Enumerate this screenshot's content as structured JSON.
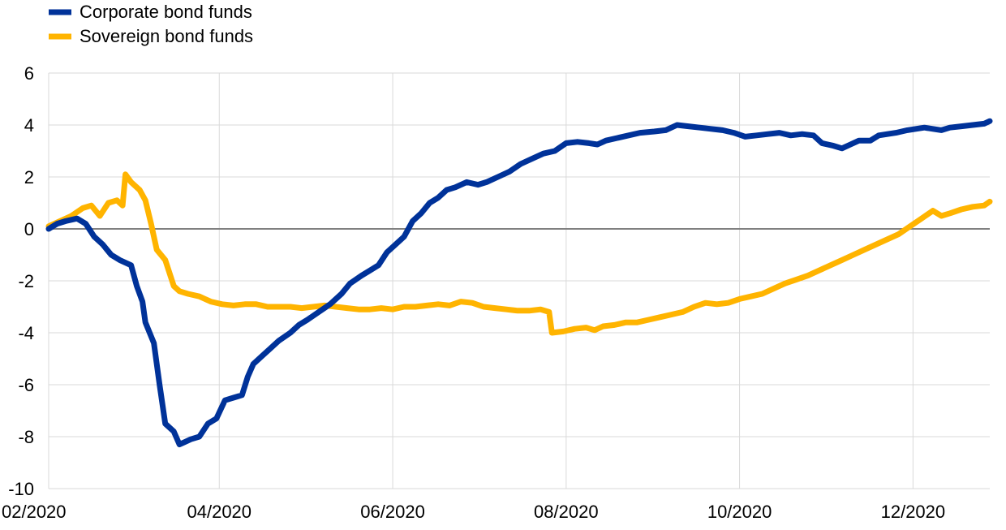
{
  "colors": {
    "corporate": "#003299",
    "sovereign": "#FFB400",
    "grid": "#d9d9d9",
    "zero": "#808080"
  },
  "chart_data": {
    "type": "line",
    "title": "",
    "xlabel": "",
    "ylabel": "",
    "x_range": [
      "2020-02-01",
      "2020-12-28"
    ],
    "ylim": [
      -10,
      6
    ],
    "y_ticks": [
      "6",
      "4",
      "2",
      "0",
      "-2",
      "-4",
      "-6",
      "-8",
      "-10"
    ],
    "x_ticks": [
      {
        "date": "2020-02-01",
        "label": "02/2020"
      },
      {
        "date": "2020-04-01",
        "label": "04/2020"
      },
      {
        "date": "2020-06-01",
        "label": "06/2020"
      },
      {
        "date": "2020-08-01",
        "label": "08/2020"
      },
      {
        "date": "2020-10-01",
        "label": "10/2020"
      },
      {
        "date": "2020-12-01",
        "label": "12/2020"
      }
    ],
    "grid": "vertical and horizontal",
    "legend_position": "top-left",
    "series": [
      {
        "name": "Corporate bond funds",
        "points": [
          [
            "2020-02-01",
            0.0
          ],
          [
            "2020-02-04",
            0.2
          ],
          [
            "2020-02-07",
            0.3
          ],
          [
            "2020-02-11",
            0.4
          ],
          [
            "2020-02-14",
            0.2
          ],
          [
            "2020-02-17",
            -0.3
          ],
          [
            "2020-02-20",
            -0.6
          ],
          [
            "2020-02-23",
            -1.0
          ],
          [
            "2020-02-26",
            -1.2
          ],
          [
            "2020-03-01",
            -1.4
          ],
          [
            "2020-03-03",
            -2.2
          ],
          [
            "2020-03-05",
            -2.8
          ],
          [
            "2020-03-06",
            -3.6
          ],
          [
            "2020-03-09",
            -4.4
          ],
          [
            "2020-03-11",
            -6.0
          ],
          [
            "2020-03-13",
            -7.5
          ],
          [
            "2020-03-16",
            -7.8
          ],
          [
            "2020-03-18",
            -8.3
          ],
          [
            "2020-03-20",
            -8.2
          ],
          [
            "2020-03-22",
            -8.1
          ],
          [
            "2020-03-25",
            -8.0
          ],
          [
            "2020-03-28",
            -7.5
          ],
          [
            "2020-03-31",
            -7.3
          ],
          [
            "2020-04-03",
            -6.6
          ],
          [
            "2020-04-06",
            -6.5
          ],
          [
            "2020-04-09",
            -6.4
          ],
          [
            "2020-04-11",
            -5.7
          ],
          [
            "2020-04-13",
            -5.2
          ],
          [
            "2020-04-16",
            -4.9
          ],
          [
            "2020-04-19",
            -4.6
          ],
          [
            "2020-04-22",
            -4.3
          ],
          [
            "2020-04-26",
            -4.0
          ],
          [
            "2020-04-29",
            -3.7
          ],
          [
            "2020-05-02",
            -3.5
          ],
          [
            "2020-05-06",
            -3.2
          ],
          [
            "2020-05-10",
            -2.9
          ],
          [
            "2020-05-14",
            -2.5
          ],
          [
            "2020-05-17",
            -2.1
          ],
          [
            "2020-05-21",
            -1.8
          ],
          [
            "2020-05-24",
            -1.6
          ],
          [
            "2020-05-27",
            -1.4
          ],
          [
            "2020-05-30",
            -0.9
          ],
          [
            "2020-06-02",
            -0.6
          ],
          [
            "2020-06-05",
            -0.3
          ],
          [
            "2020-06-08",
            0.3
          ],
          [
            "2020-06-11",
            0.6
          ],
          [
            "2020-06-14",
            1.0
          ],
          [
            "2020-06-17",
            1.2
          ],
          [
            "2020-06-20",
            1.5
          ],
          [
            "2020-06-23",
            1.6
          ],
          [
            "2020-06-27",
            1.8
          ],
          [
            "2020-07-01",
            1.7
          ],
          [
            "2020-07-04",
            1.8
          ],
          [
            "2020-07-08",
            2.0
          ],
          [
            "2020-07-12",
            2.2
          ],
          [
            "2020-07-16",
            2.5
          ],
          [
            "2020-07-20",
            2.7
          ],
          [
            "2020-07-24",
            2.9
          ],
          [
            "2020-07-28",
            3.0
          ],
          [
            "2020-08-01",
            3.3
          ],
          [
            "2020-08-05",
            3.35
          ],
          [
            "2020-08-09",
            3.3
          ],
          [
            "2020-08-12",
            3.25
          ],
          [
            "2020-08-15",
            3.4
          ],
          [
            "2020-08-19",
            3.5
          ],
          [
            "2020-08-23",
            3.6
          ],
          [
            "2020-08-27",
            3.7
          ],
          [
            "2020-09-01",
            3.75
          ],
          [
            "2020-09-05",
            3.8
          ],
          [
            "2020-09-09",
            4.0
          ],
          [
            "2020-09-13",
            3.95
          ],
          [
            "2020-09-17",
            3.9
          ],
          [
            "2020-09-21",
            3.85
          ],
          [
            "2020-09-25",
            3.8
          ],
          [
            "2020-09-29",
            3.7
          ],
          [
            "2020-10-03",
            3.55
          ],
          [
            "2020-10-07",
            3.6
          ],
          [
            "2020-10-11",
            3.65
          ],
          [
            "2020-10-15",
            3.7
          ],
          [
            "2020-10-19",
            3.6
          ],
          [
            "2020-10-23",
            3.65
          ],
          [
            "2020-10-27",
            3.6
          ],
          [
            "2020-10-30",
            3.3
          ],
          [
            "2020-11-03",
            3.2
          ],
          [
            "2020-11-06",
            3.1
          ],
          [
            "2020-11-09",
            3.25
          ],
          [
            "2020-11-12",
            3.4
          ],
          [
            "2020-11-16",
            3.4
          ],
          [
            "2020-11-19",
            3.6
          ],
          [
            "2020-11-22",
            3.65
          ],
          [
            "2020-11-25",
            3.7
          ],
          [
            "2020-11-29",
            3.8
          ],
          [
            "2020-12-02",
            3.85
          ],
          [
            "2020-12-05",
            3.9
          ],
          [
            "2020-12-08",
            3.85
          ],
          [
            "2020-12-11",
            3.8
          ],
          [
            "2020-12-14",
            3.9
          ],
          [
            "2020-12-18",
            3.95
          ],
          [
            "2020-12-22",
            4.0
          ],
          [
            "2020-12-26",
            4.05
          ],
          [
            "2020-12-28",
            4.15
          ]
        ]
      },
      {
        "name": "Sovereign bond funds",
        "points": [
          [
            "2020-02-01",
            0.1
          ],
          [
            "2020-02-05",
            0.3
          ],
          [
            "2020-02-09",
            0.5
          ],
          [
            "2020-02-13",
            0.8
          ],
          [
            "2020-02-16",
            0.9
          ],
          [
            "2020-02-19",
            0.5
          ],
          [
            "2020-02-22",
            1.0
          ],
          [
            "2020-02-25",
            1.1
          ],
          [
            "2020-02-27",
            0.9
          ],
          [
            "2020-02-28",
            2.1
          ],
          [
            "2020-03-01",
            1.8
          ],
          [
            "2020-03-04",
            1.5
          ],
          [
            "2020-03-06",
            1.1
          ],
          [
            "2020-03-08",
            0.2
          ],
          [
            "2020-03-10",
            -0.8
          ],
          [
            "2020-03-13",
            -1.2
          ],
          [
            "2020-03-16",
            -2.2
          ],
          [
            "2020-03-18",
            -2.4
          ],
          [
            "2020-03-21",
            -2.5
          ],
          [
            "2020-03-25",
            -2.6
          ],
          [
            "2020-03-29",
            -2.8
          ],
          [
            "2020-04-02",
            -2.9
          ],
          [
            "2020-04-06",
            -2.95
          ],
          [
            "2020-04-10",
            -2.9
          ],
          [
            "2020-04-14",
            -2.9
          ],
          [
            "2020-04-18",
            -3.0
          ],
          [
            "2020-04-22",
            -3.0
          ],
          [
            "2020-04-26",
            -3.0
          ],
          [
            "2020-04-30",
            -3.05
          ],
          [
            "2020-05-04",
            -3.0
          ],
          [
            "2020-05-08",
            -2.95
          ],
          [
            "2020-05-12",
            -3.0
          ],
          [
            "2020-05-16",
            -3.05
          ],
          [
            "2020-05-20",
            -3.1
          ],
          [
            "2020-05-24",
            -3.1
          ],
          [
            "2020-05-28",
            -3.05
          ],
          [
            "2020-06-01",
            -3.1
          ],
          [
            "2020-06-05",
            -3.0
          ],
          [
            "2020-06-09",
            -3.0
          ],
          [
            "2020-06-13",
            -2.95
          ],
          [
            "2020-06-17",
            -2.9
          ],
          [
            "2020-06-21",
            -2.95
          ],
          [
            "2020-06-25",
            -2.8
          ],
          [
            "2020-06-29",
            -2.85
          ],
          [
            "2020-07-03",
            -3.0
          ],
          [
            "2020-07-07",
            -3.05
          ],
          [
            "2020-07-11",
            -3.1
          ],
          [
            "2020-07-15",
            -3.15
          ],
          [
            "2020-07-19",
            -3.15
          ],
          [
            "2020-07-23",
            -3.1
          ],
          [
            "2020-07-26",
            -3.2
          ],
          [
            "2020-07-27",
            -4.0
          ],
          [
            "2020-07-31",
            -3.95
          ],
          [
            "2020-08-04",
            -3.85
          ],
          [
            "2020-08-08",
            -3.8
          ],
          [
            "2020-08-11",
            -3.9
          ],
          [
            "2020-08-14",
            -3.75
          ],
          [
            "2020-08-18",
            -3.7
          ],
          [
            "2020-08-22",
            -3.6
          ],
          [
            "2020-08-26",
            -3.6
          ],
          [
            "2020-08-30",
            -3.5
          ],
          [
            "2020-09-03",
            -3.4
          ],
          [
            "2020-09-07",
            -3.3
          ],
          [
            "2020-09-11",
            -3.2
          ],
          [
            "2020-09-15",
            -3.0
          ],
          [
            "2020-09-19",
            -2.85
          ],
          [
            "2020-09-23",
            -2.9
          ],
          [
            "2020-09-27",
            -2.85
          ],
          [
            "2020-10-01",
            -2.7
          ],
          [
            "2020-10-05",
            -2.6
          ],
          [
            "2020-10-09",
            -2.5
          ],
          [
            "2020-10-13",
            -2.3
          ],
          [
            "2020-10-17",
            -2.1
          ],
          [
            "2020-10-21",
            -1.95
          ],
          [
            "2020-10-25",
            -1.8
          ],
          [
            "2020-10-29",
            -1.6
          ],
          [
            "2020-11-02",
            -1.4
          ],
          [
            "2020-11-06",
            -1.2
          ],
          [
            "2020-11-10",
            -1.0
          ],
          [
            "2020-11-14",
            -0.8
          ],
          [
            "2020-11-18",
            -0.6
          ],
          [
            "2020-11-22",
            -0.4
          ],
          [
            "2020-11-26",
            -0.2
          ],
          [
            "2020-11-30",
            0.1
          ],
          [
            "2020-12-04",
            0.4
          ],
          [
            "2020-12-08",
            0.7
          ],
          [
            "2020-12-11",
            0.5
          ],
          [
            "2020-12-14",
            0.6
          ],
          [
            "2020-12-18",
            0.75
          ],
          [
            "2020-12-22",
            0.85
          ],
          [
            "2020-12-26",
            0.9
          ],
          [
            "2020-12-28",
            1.05
          ]
        ]
      }
    ]
  }
}
